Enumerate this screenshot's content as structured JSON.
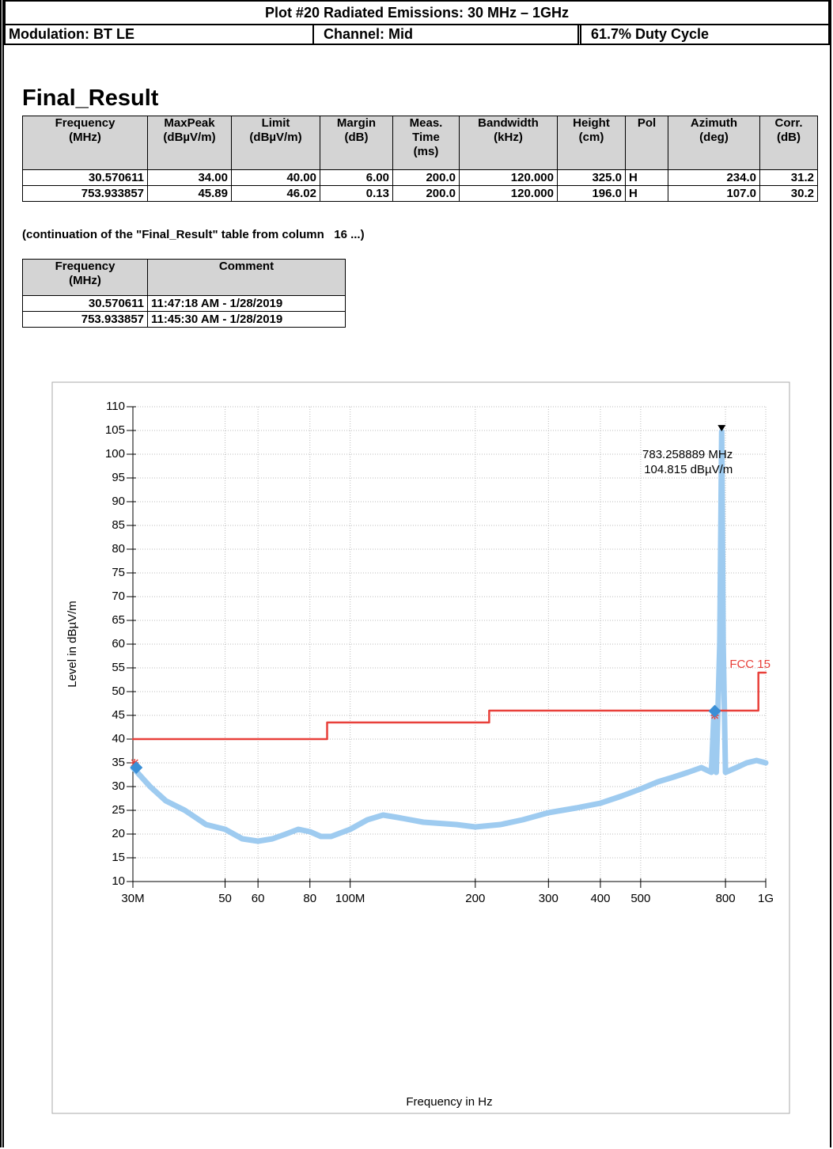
{
  "header": {
    "title": "Plot #20 Radiated Emissions: 30 MHz – 1GHz",
    "modulation": "Modulation: BT LE",
    "channel": "Channel: Mid",
    "duty_cycle": "61.7% Duty Cycle"
  },
  "final_result": {
    "title": "Final_Result",
    "columns": [
      "Frequency\n(MHz)",
      "MaxPeak\n(dBµV/m)",
      "Limit\n(dBµV/m)",
      "Margin\n(dB)",
      "Meas.\nTime\n(ms)",
      "Bandwidth\n(kHz)",
      "Height\n(cm)",
      "Pol",
      "Azimuth\n(deg)",
      "Corr.\n(dB)"
    ],
    "rows": [
      [
        "30.570611",
        "34.00",
        "40.00",
        "6.00",
        "200.0",
        "120.000",
        "325.0",
        "H",
        "234.0",
        "31.2"
      ],
      [
        "753.933857",
        "45.89",
        "46.02",
        "0.13",
        "200.0",
        "120.000",
        "196.0",
        "H",
        "107.0",
        "30.2"
      ]
    ]
  },
  "continuation_note": "(continuation of the \"Final_Result\" table from column   16 ...)",
  "comment_table": {
    "columns": [
      "Frequency\n(MHz)",
      "Comment"
    ],
    "rows": [
      [
        "30.570611",
        "11:47:18 AM - 1/28/2019"
      ],
      [
        "753.933857",
        "11:45:30 AM - 1/28/2019"
      ]
    ]
  },
  "chart_data": {
    "type": "line",
    "x_label": "Frequency in Hz",
    "y_label": "Level in dBµV/m",
    "xscale": "log",
    "grid": true,
    "xlim": [
      30000000,
      1000000000
    ],
    "ylim": [
      10,
      110
    ],
    "xticks": [
      {
        "value": 30000000,
        "label": "30M"
      },
      {
        "value": 50000000,
        "label": "50"
      },
      {
        "value": 60000000,
        "label": "60"
      },
      {
        "value": 80000000,
        "label": "80"
      },
      {
        "value": 100000000,
        "label": "100M"
      },
      {
        "value": 200000000,
        "label": "200"
      },
      {
        "value": 300000000,
        "label": "300"
      },
      {
        "value": 400000000,
        "label": "400"
      },
      {
        "value": 500000000,
        "label": "500"
      },
      {
        "value": 800000000,
        "label": "800"
      },
      {
        "value": 1000000000,
        "label": "1G"
      }
    ],
    "yticks": [
      10,
      15,
      20,
      25,
      30,
      35,
      40,
      45,
      50,
      55,
      60,
      65,
      70,
      75,
      80,
      85,
      90,
      95,
      100,
      105,
      110
    ],
    "series": [
      {
        "color": "#9ecbf0",
        "x": [
          30000000,
          33000000,
          36000000,
          40000000,
          45000000,
          50000000,
          55000000,
          60000000,
          65000000,
          70000000,
          75000000,
          80000000,
          85000000,
          90000000,
          100000000,
          110000000,
          120000000,
          130000000,
          150000000,
          180000000,
          200000000,
          230000000,
          260000000,
          300000000,
          350000000,
          400000000,
          450000000,
          500000000,
          550000000,
          600000000,
          650000000,
          700000000,
          740000000,
          750000000,
          760000000,
          775000000,
          783258889,
          790000000,
          800000000,
          850000000,
          900000000,
          950000000,
          1000000000
        ],
        "values": [
          34,
          30,
          27,
          25,
          22,
          21,
          19,
          18.5,
          19,
          20,
          21,
          20.5,
          19.5,
          19.5,
          21,
          23,
          24,
          23.5,
          22.5,
          22,
          21.5,
          22,
          23,
          24.5,
          25.5,
          26.5,
          28,
          29.5,
          31,
          32,
          33,
          34,
          33,
          45,
          33,
          60,
          104.8,
          60,
          33,
          34,
          35,
          35.5,
          35
        ]
      },
      {
        "name": "FCC 15",
        "color": "#e8403a",
        "x": [
          30000000,
          88000000,
          88000000,
          216000000,
          216000000,
          960000000,
          960000000,
          1000000000
        ],
        "values": [
          40,
          40,
          43.5,
          43.5,
          46,
          46,
          54,
          54
        ]
      }
    ],
    "final_points": {
      "color": "#3b8fd6",
      "x": [
        30570611,
        753933857
      ],
      "values": [
        34.0,
        45.89
      ]
    },
    "preview_points": {
      "color": "#e8403a",
      "x": [
        30300000,
        753900000
      ],
      "values": [
        35,
        45
      ]
    },
    "marker": {
      "x": 783258889,
      "y": 104.815,
      "labels": [
        "783.258889 MHz",
        "104.815 dBµV/m"
      ]
    }
  }
}
